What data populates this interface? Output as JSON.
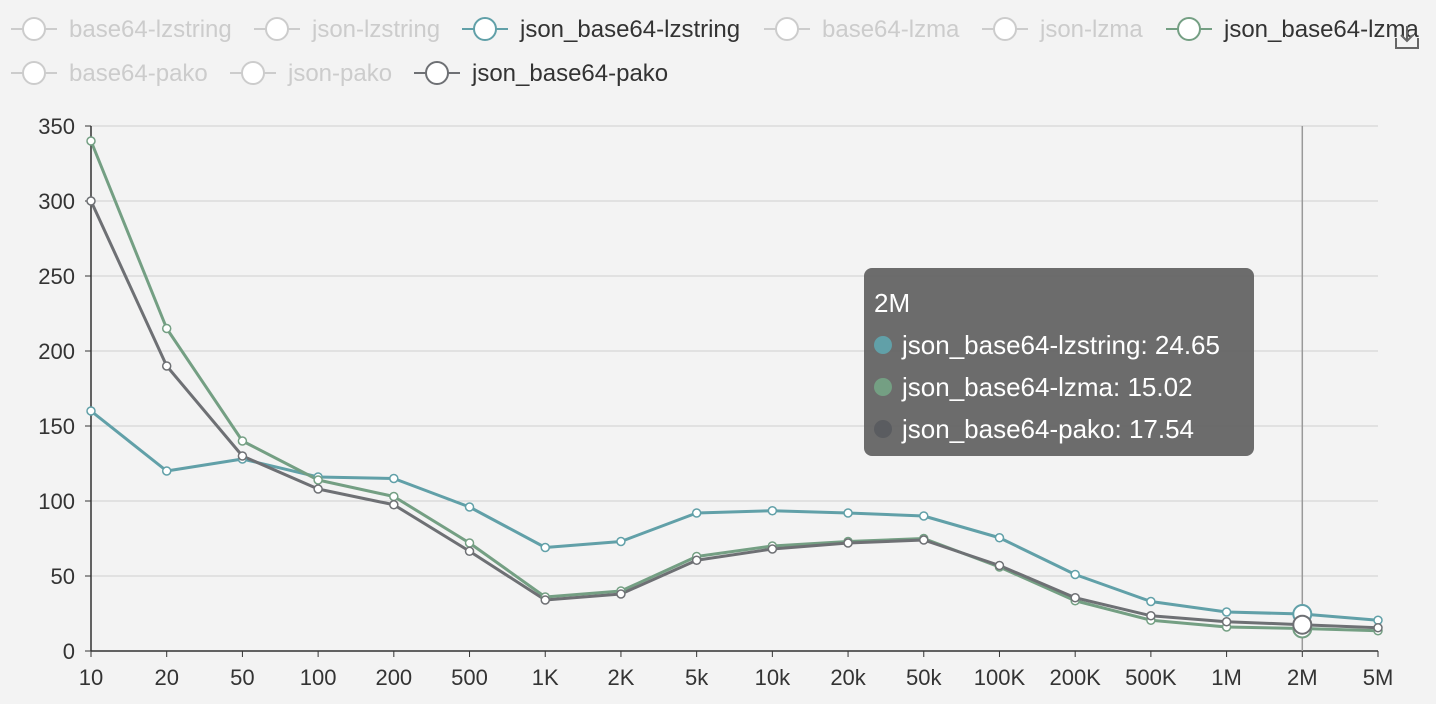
{
  "chart_data": {
    "type": "line",
    "categories": [
      "10",
      "20",
      "50",
      "100",
      "200",
      "500",
      "1K",
      "2K",
      "5k",
      "10k",
      "20k",
      "50k",
      "100K",
      "200K",
      "500K",
      "1M",
      "2M",
      "5M"
    ],
    "ylim": [
      0,
      350
    ],
    "yticks": [
      0,
      50,
      100,
      150,
      200,
      250,
      300,
      350
    ],
    "grid": true,
    "legend": {
      "placement": "top",
      "items": [
        {
          "name": "base64-lzstring",
          "active": false,
          "color": "#cccccc"
        },
        {
          "name": "json-lzstring",
          "active": false,
          "color": "#cccccc"
        },
        {
          "name": "json_base64-lzstring",
          "active": true,
          "color": "#61a0a8"
        },
        {
          "name": "base64-lzma",
          "active": false,
          "color": "#cccccc"
        },
        {
          "name": "json-lzma",
          "active": false,
          "color": "#cccccc"
        },
        {
          "name": "json_base64-lzma",
          "active": true,
          "color": "#749f83"
        },
        {
          "name": "base64-pako",
          "active": false,
          "color": "#cccccc"
        },
        {
          "name": "json-pako",
          "active": false,
          "color": "#cccccc"
        },
        {
          "name": "json_base64-pako",
          "active": true,
          "color": "#6e7074"
        }
      ]
    },
    "series": [
      {
        "name": "json_base64-lzstring",
        "color": "#61a0a8",
        "values": [
          160,
          120,
          128,
          116,
          115,
          96,
          69,
          73,
          92,
          93.5,
          92,
          90,
          75.5,
          51,
          33,
          26,
          24.65,
          20.5
        ]
      },
      {
        "name": "json_base64-lzma",
        "color": "#749f83",
        "values": [
          340,
          215,
          140,
          114,
          103,
          72,
          36,
          40,
          63,
          70,
          73,
          75,
          56,
          33.5,
          20.5,
          16,
          15.02,
          13.5
        ]
      },
      {
        "name": "json_base64-pako",
        "color": "#6e7074",
        "values": [
          300,
          190,
          130,
          108,
          97.5,
          66.5,
          34,
          38,
          60.5,
          68,
          72,
          74,
          57,
          35.5,
          23.5,
          19.5,
          17.54,
          15.5
        ]
      }
    ],
    "highlight_category": "2M",
    "tooltip": {
      "title": "2M",
      "rows": [
        {
          "label": "json_base64-lzstring: 24.65",
          "color": "#61a0a8"
        },
        {
          "label": "json_base64-lzma: 15.02",
          "color": "#749f83"
        },
        {
          "label": "json_base64-pako: 17.54",
          "color": "#6e7074"
        }
      ]
    }
  },
  "toolbar": {
    "save_icon": "download-icon"
  }
}
